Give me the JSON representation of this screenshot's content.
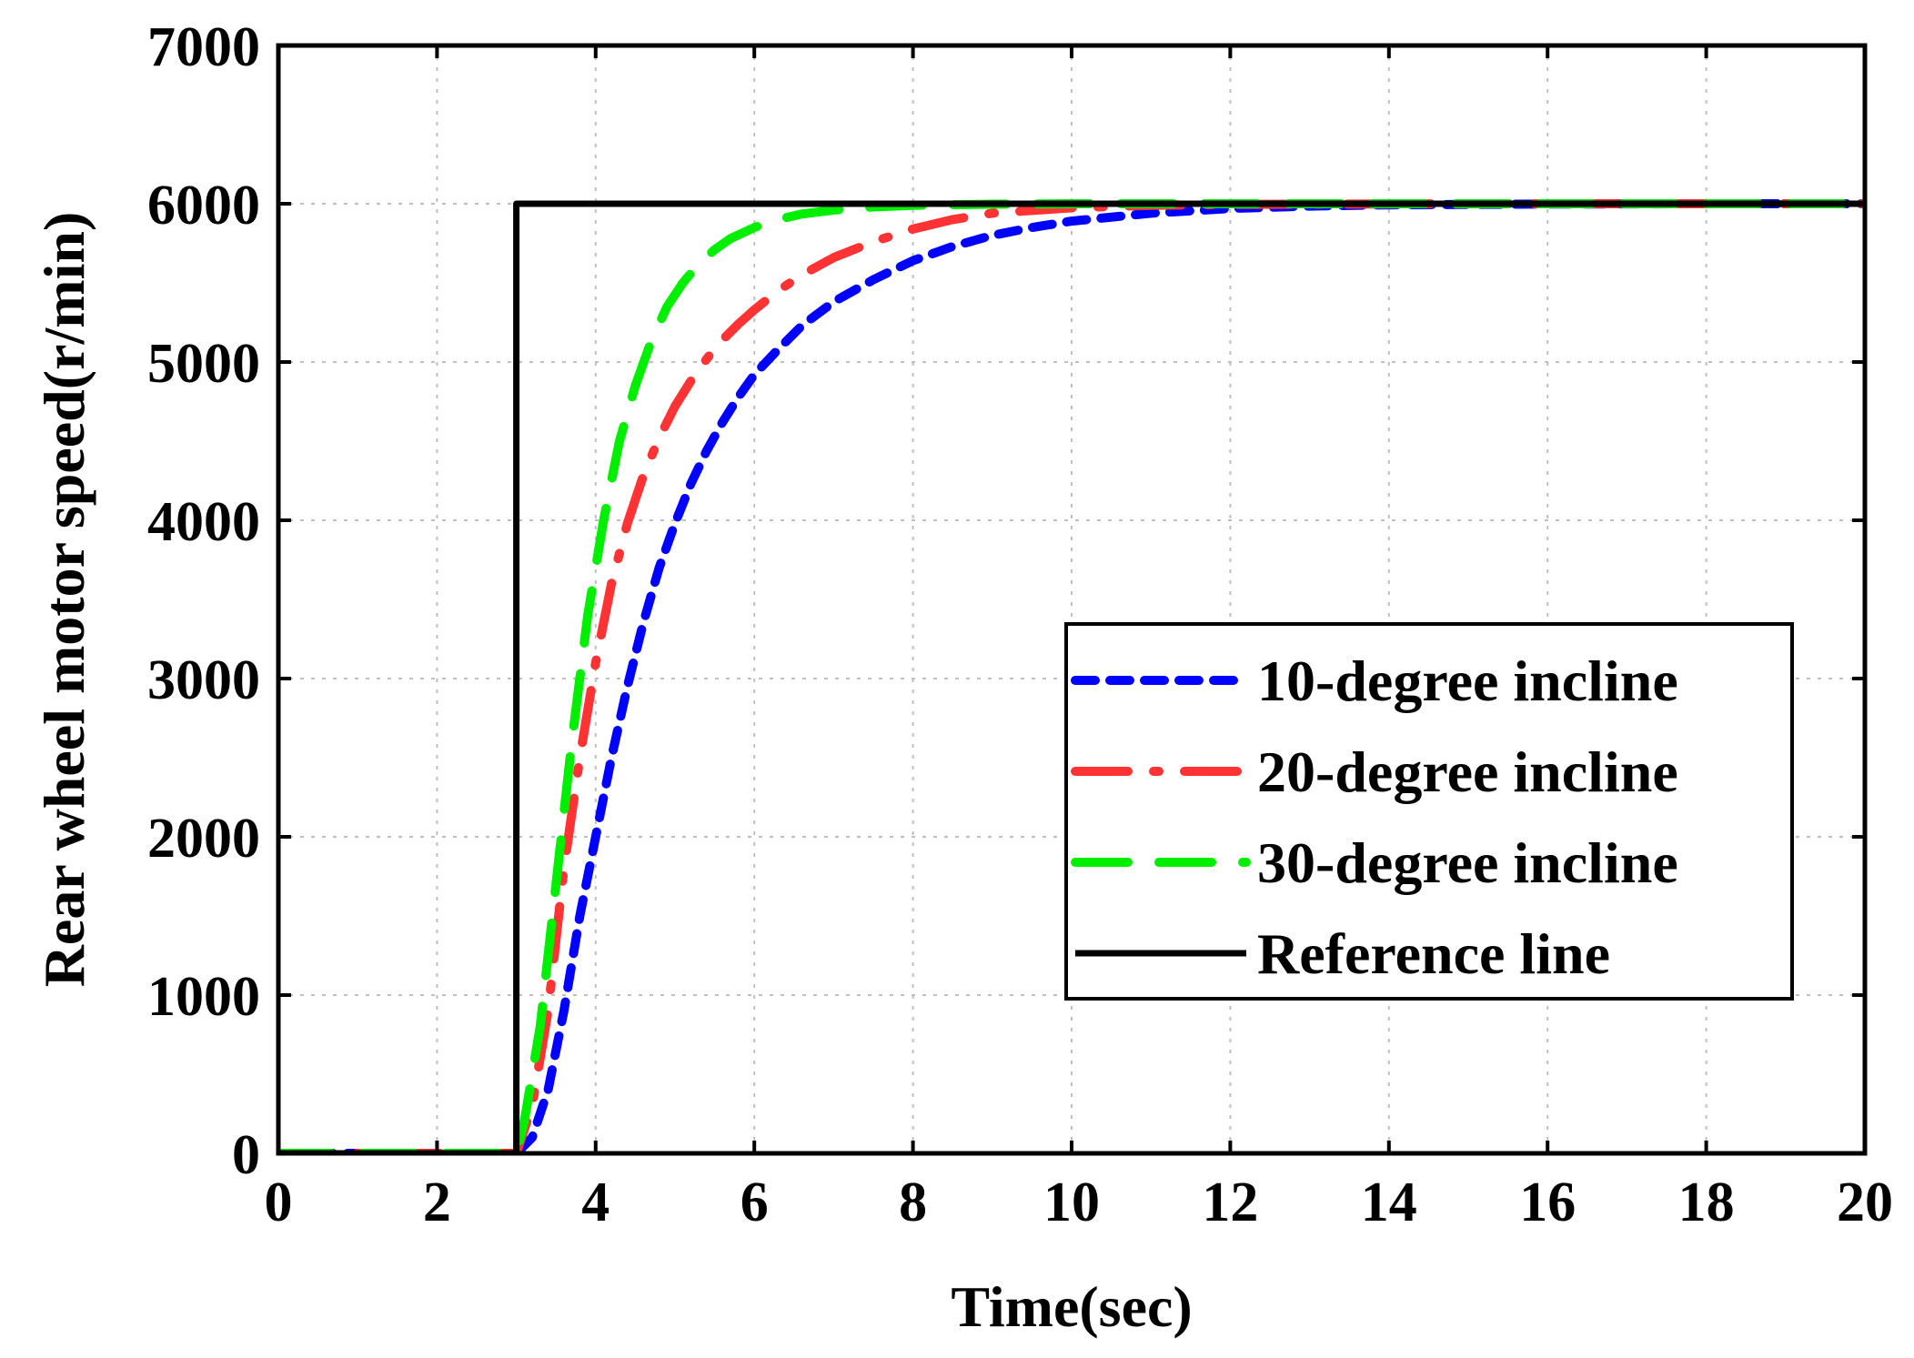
{
  "chart_data": {
    "type": "line",
    "title": "",
    "xlabel": "Time(sec)",
    "ylabel": "Rear wheel motor speed(r/min)",
    "xlim": [
      0,
      20
    ],
    "ylim": [
      0,
      7000
    ],
    "xticks": [
      0,
      2,
      4,
      6,
      8,
      10,
      12,
      14,
      16,
      18,
      20
    ],
    "yticks": [
      0,
      1000,
      2000,
      3000,
      4000,
      5000,
      6000,
      7000
    ],
    "xtick_labels": [
      "0",
      "2",
      "4",
      "6",
      "8",
      "10",
      "12",
      "14",
      "16",
      "18",
      "20"
    ],
    "ytick_labels": [
      "0",
      "1000",
      "2000",
      "3000",
      "4000",
      "5000",
      "6000",
      "7000"
    ],
    "grid": true,
    "legend_position": "right",
    "series": [
      {
        "name": "10-degree incline",
        "color": "#0000ff",
        "style": "dashed",
        "x": [
          0,
          1,
          2,
          3,
          3.2,
          3.4,
          3.6,
          3.8,
          4.0,
          4.2,
          4.4,
          4.6,
          4.8,
          5.0,
          5.2,
          5.4,
          5.6,
          5.8,
          6.0,
          6.3,
          6.6,
          7.0,
          7.5,
          8.0,
          8.5,
          9.0,
          9.5,
          10,
          11,
          12,
          13,
          14,
          16,
          18,
          20
        ],
        "values": [
          0,
          0,
          0,
          0,
          100,
          400,
          900,
          1500,
          2000,
          2500,
          2950,
          3350,
          3700,
          3980,
          4230,
          4440,
          4620,
          4780,
          4920,
          5080,
          5230,
          5380,
          5520,
          5640,
          5730,
          5800,
          5850,
          5890,
          5940,
          5970,
          5985,
          5993,
          5998,
          6000,
          6000
        ]
      },
      {
        "name": "20-degree incline",
        "color": "#ff3333",
        "style": "dash-dot",
        "x": [
          0,
          1,
          2,
          3,
          3.2,
          3.4,
          3.6,
          3.8,
          4.0,
          4.2,
          4.4,
          4.6,
          4.8,
          5.0,
          5.2,
          5.4,
          5.6,
          5.8,
          6.0,
          6.3,
          6.6,
          7.0,
          7.5,
          8.0,
          8.5,
          9.0,
          10,
          11,
          12,
          14,
          16,
          18,
          20
        ],
        "values": [
          0,
          0,
          0,
          0,
          300,
          900,
          1800,
          2500,
          3100,
          3600,
          3980,
          4280,
          4520,
          4720,
          4880,
          5020,
          5140,
          5240,
          5330,
          5450,
          5550,
          5660,
          5760,
          5840,
          5900,
          5940,
          5975,
          5990,
          5996,
          5999,
          6000,
          6000,
          6000
        ]
      },
      {
        "name": "30-degree incline",
        "color": "#00ee00",
        "style": "long-dash",
        "x": [
          0,
          1,
          2,
          3,
          3.1,
          3.3,
          3.5,
          3.7,
          3.9,
          4.1,
          4.3,
          4.5,
          4.7,
          4.9,
          5.1,
          5.3,
          5.5,
          5.7,
          6.0,
          6.3,
          6.6,
          7.0,
          7.5,
          8.0,
          9.0,
          10,
          12,
          14,
          16,
          18,
          20
        ],
        "values": [
          0,
          0,
          0,
          0,
          200,
          800,
          1700,
          2600,
          3400,
          4000,
          4500,
          4850,
          5130,
          5350,
          5500,
          5620,
          5710,
          5780,
          5850,
          5900,
          5935,
          5960,
          5980,
          5990,
          5997,
          6000,
          6000,
          6000,
          6000,
          6000,
          6000
        ]
      },
      {
        "name": "Reference line",
        "color": "#000000",
        "style": "solid",
        "x": [
          0,
          3,
          3,
          20
        ],
        "values": [
          0,
          0,
          6000,
          6000
        ]
      }
    ]
  }
}
